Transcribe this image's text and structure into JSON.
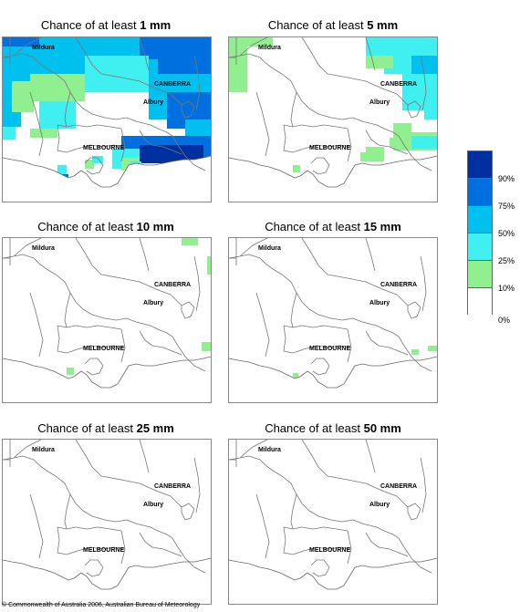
{
  "panels": [
    {
      "title_prefix": "Chance of at least ",
      "title_value": "1 mm"
    },
    {
      "title_prefix": "Chance of at least ",
      "title_value": "5 mm"
    },
    {
      "title_prefix": "Chance of at least ",
      "title_value": "10 mm"
    },
    {
      "title_prefix": "Chance of at least ",
      "title_value": "15 mm"
    },
    {
      "title_prefix": "Chance of at least ",
      "title_value": "25 mm"
    },
    {
      "title_prefix": "Chance of at least ",
      "title_value": "50 mm"
    }
  ],
  "cities": {
    "mildura": "Mildura",
    "canberra": "CANBERRA",
    "albury": "Albury",
    "melbourne": "MELBOURNE"
  },
  "legend": {
    "labels": [
      "90%",
      "75%",
      "50%",
      "25%",
      "10%",
      "0%"
    ],
    "colors": [
      "#0030a0",
      "#0070e0",
      "#00c0f0",
      "#40f0f0",
      "#90f090",
      "#ffffff"
    ]
  },
  "footer": "© Commonwealth of Australia 2006, Australian Bureau of Meteorology"
}
